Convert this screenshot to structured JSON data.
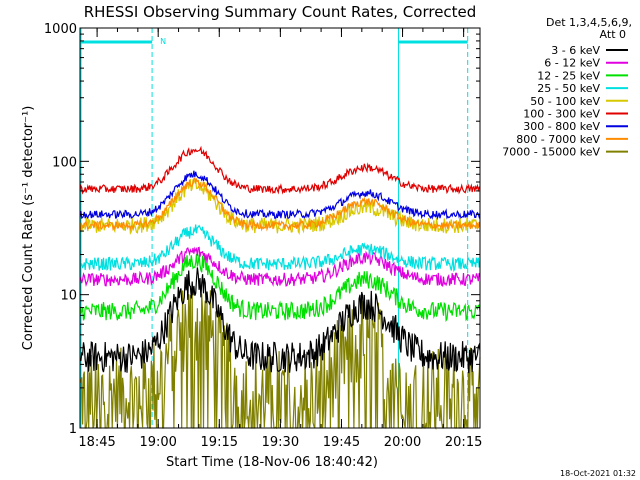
{
  "chart_data": {
    "type": "line",
    "title": "RHESSI Observing Summary Count Rates, Corrected",
    "xlabel": "Start Time (18-Nov-06 18:40:42)",
    "ylabel": "Corrected Count Rate (s⁻¹ detector⁻¹)",
    "yscale": "log",
    "xlim_minutes": [
      18.68,
      20.317
    ],
    "ylim": [
      1,
      1000
    ],
    "x_ticks": [
      "18:45",
      "19:00",
      "19:15",
      "19:30",
      "19:45",
      "20:00",
      "20:15"
    ],
    "y_ticks": [
      "1",
      "10",
      "100",
      "1000"
    ],
    "legend_header": [
      "Det 1,3,4,5,6,9,",
      "Att 0"
    ],
    "legend_position": "outside-right",
    "footer_date": "18-Oct-2021 01:32",
    "night_marker_label": "N",
    "night_intervals": [
      {
        "start": "18:40:42",
        "end": "18:58:30"
      },
      {
        "start": "19:59:00",
        "end": "20:16:00"
      }
    ],
    "series": [
      {
        "name": "3 - 6 keV",
        "color": "#000000",
        "base": 3.4,
        "peaks": [
          12.5,
          8.5
        ],
        "noise": 0.12
      },
      {
        "name": "6 - 12 keV",
        "color": "#e000e0",
        "base": 13,
        "peaks": [
          21,
          19
        ],
        "noise": 0.05
      },
      {
        "name": "12 - 25 keV",
        "color": "#00e000",
        "base": 7.5,
        "peaks": [
          18,
          13
        ],
        "noise": 0.07
      },
      {
        "name": "25 - 50 keV",
        "color": "#00e0e0",
        "base": 17,
        "peaks": [
          30,
          22
        ],
        "noise": 0.05
      },
      {
        "name": "50 - 100 keV",
        "color": "#d8c800",
        "base": 33,
        "peaks": [
          65,
          45
        ],
        "noise": 0.06
      },
      {
        "name": "100 - 300 keV",
        "color": "#e00000",
        "base": 62,
        "peaks": [
          122,
          90
        ],
        "noise": 0.03
      },
      {
        "name": "300 - 800 keV",
        "color": "#0000e0",
        "base": 40,
        "peaks": [
          80,
          58
        ],
        "noise": 0.03
      },
      {
        "name": "800 - 7000 keV",
        "color": "#ff8c00",
        "base": 33,
        "peaks": [
          70,
          50
        ],
        "noise": 0.03
      },
      {
        "name": "7000 - 15000 keV",
        "color": "#808000",
        "base": 1.8,
        "peaks": [
          6.5,
          4.5
        ],
        "noise": 0.35
      }
    ]
  }
}
